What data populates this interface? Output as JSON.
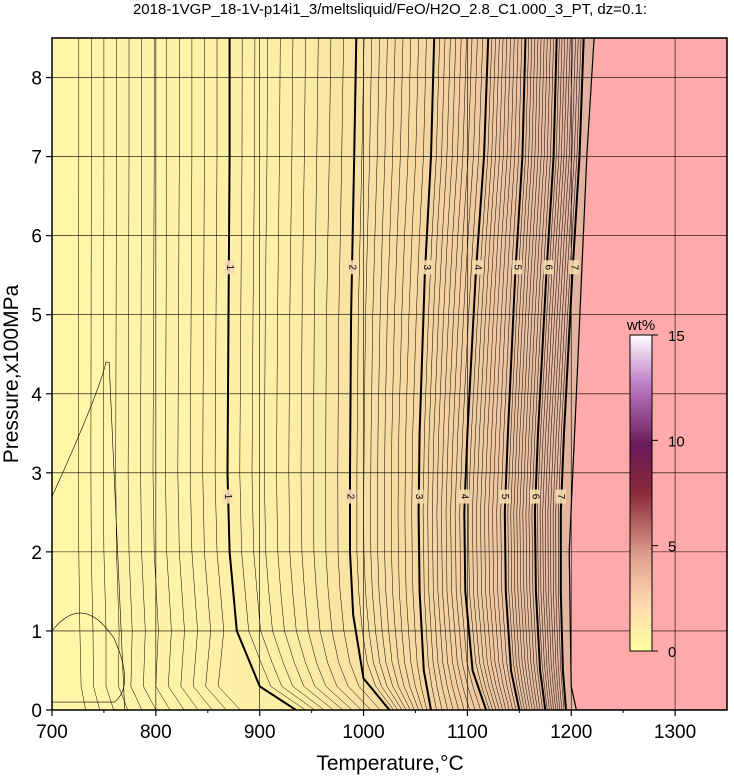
{
  "chart_data": {
    "type": "contour",
    "title": "2018-1VGP_18-1V-p14i1_3/meltsliquid/FeO/H2O_2.8_C1.000_3_PT, dz=0.1:",
    "xlabel": "Temperature,°C",
    "ylabel": "Pressure,x100MPa",
    "xlim": [
      700,
      1350
    ],
    "ylim": [
      0,
      8.5
    ],
    "xticks": [
      "700",
      "800",
      "900",
      "1000",
      "1100",
      "1200",
      "1300"
    ],
    "yticks": [
      "0",
      "1",
      "2",
      "3",
      "4",
      "5",
      "6",
      "7",
      "8"
    ],
    "grid": true,
    "colorbar": {
      "label": "wt%",
      "min": 0,
      "max": 15,
      "ticks": [
        "0",
        "5",
        "10",
        "15"
      ],
      "colors": [
        "#ffffa0",
        "#ffd8b0",
        "#e0a090",
        "#8a2a3a",
        "#6a1a5a",
        "#b070c0",
        "#ffffff"
      ]
    },
    "colors": {
      "background_low": "#fff8a8",
      "background_high": "#ffaaaa",
      "contour": "#000000"
    },
    "liquidus_boundary": [
      [
        1205,
        0
      ],
      [
        1200,
        0.3
      ],
      [
        1198,
        2
      ],
      [
        1205,
        4
      ],
      [
        1215,
        7
      ],
      [
        1222,
        8.5
      ]
    ],
    "major_contours": [
      {
        "level": "1",
        "points": [
          [
            935,
            0
          ],
          [
            900,
            0.3
          ],
          [
            878,
            1
          ],
          [
            871,
            2
          ],
          [
            869,
            3
          ],
          [
            870,
            5
          ],
          [
            871,
            7
          ],
          [
            871,
            8.5
          ]
        ],
        "labels": [
          [
            869,
            2.7
          ],
          [
            871,
            5.6
          ]
        ]
      },
      {
        "level": "2",
        "points": [
          [
            1025,
            0
          ],
          [
            1000,
            0.4
          ],
          [
            990,
            1.2
          ],
          [
            987,
            2
          ],
          [
            987,
            3
          ],
          [
            988,
            5
          ],
          [
            991,
            7
          ],
          [
            993,
            8.5
          ]
        ],
        "labels": [
          [
            987,
            2.7
          ],
          [
            989,
            5.6
          ]
        ]
      },
      {
        "level": "3",
        "points": [
          [
            1065,
            0
          ],
          [
            1058,
            0.5
          ],
          [
            1054,
            1.5
          ],
          [
            1053,
            2.5
          ],
          [
            1054,
            3.5
          ],
          [
            1059,
            5.5
          ],
          [
            1065,
            7
          ],
          [
            1068,
            8.5
          ]
        ],
        "labels": [
          [
            1053,
            2.7
          ],
          [
            1061,
            5.6
          ]
        ]
      },
      {
        "level": "4",
        "points": [
          [
            1118,
            0
          ],
          [
            1105,
            0.5
          ],
          [
            1098,
            1.5
          ],
          [
            1097,
            2.5
          ],
          [
            1100,
            3.5
          ],
          [
            1108,
            5.5
          ],
          [
            1116,
            7
          ],
          [
            1120,
            8.5
          ]
        ],
        "labels": [
          [
            1097,
            2.7
          ],
          [
            1110,
            5.6
          ]
        ]
      },
      {
        "level": "5",
        "points": [
          [
            1150,
            0
          ],
          [
            1142,
            0.5
          ],
          [
            1137,
            1.5
          ],
          [
            1136,
            2.5
          ],
          [
            1139,
            3.5
          ],
          [
            1146,
            5.5
          ],
          [
            1153,
            7
          ],
          [
            1156,
            8.5
          ]
        ],
        "labels": [
          [
            1136,
            2.7
          ],
          [
            1148,
            5.6
          ]
        ]
      },
      {
        "level": "6",
        "points": [
          [
            1175,
            0
          ],
          [
            1170,
            0.5
          ],
          [
            1166,
            1.5
          ],
          [
            1165,
            2.5
          ],
          [
            1168,
            3.5
          ],
          [
            1176,
            5.5
          ],
          [
            1183,
            7
          ],
          [
            1186,
            8.5
          ]
        ],
        "labels": [
          [
            1165,
            2.7
          ],
          [
            1178,
            5.6
          ]
        ]
      },
      {
        "level": "7",
        "points": [
          [
            1195,
            0
          ],
          [
            1192,
            0.5
          ],
          [
            1190,
            1.5
          ],
          [
            1190,
            2.5
          ],
          [
            1193,
            3.5
          ],
          [
            1201,
            5.5
          ],
          [
            1208,
            7
          ],
          [
            1212,
            8.5
          ]
        ],
        "labels": [
          [
            1190,
            2.7
          ],
          [
            1203,
            5.6
          ]
        ]
      }
    ]
  }
}
